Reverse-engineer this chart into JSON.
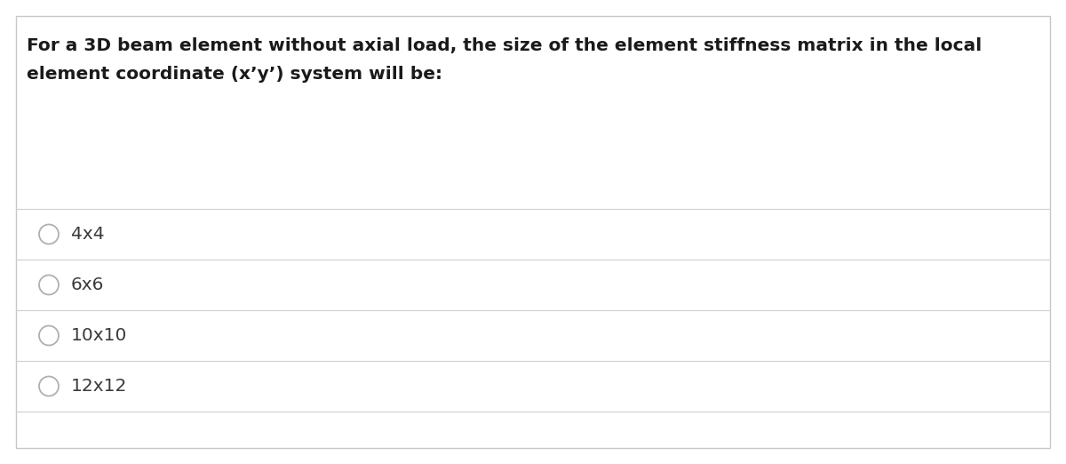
{
  "question_line1": "For a 3D beam element without axial load, the size of the element stiffness matrix in the local",
  "question_line2": "element coordinate (x’y’) system will be:",
  "options": [
    "4x4",
    "6x6",
    "10x10",
    "12x12"
  ],
  "bg_color": "#ffffff",
  "border_color": "#c8c8c8",
  "text_color": "#1a1a1a",
  "option_text_color": "#3a3a3a",
  "line_color": "#d0d0d0",
  "circle_edge_color": "#b0b0b0",
  "question_fontsize": 14.5,
  "option_fontsize": 14.5,
  "fig_width": 12.0,
  "fig_height": 5.22,
  "dpi": 100
}
